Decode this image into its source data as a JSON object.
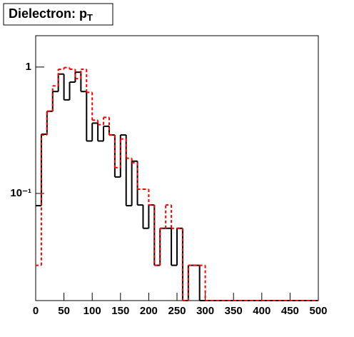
{
  "chart_data": {
    "type": "histogram",
    "title": {
      "text": "Dielectron: p",
      "subscript": "T"
    },
    "bins": [
      0,
      10,
      20,
      30,
      40,
      50,
      60,
      70,
      80,
      90,
      100,
      110,
      120,
      130,
      140,
      150,
      160,
      170,
      180,
      190,
      200,
      210,
      220,
      230,
      240,
      250,
      260,
      270,
      280,
      290,
      300,
      310,
      320,
      330,
      340,
      350,
      360,
      370,
      380,
      390,
      400,
      410,
      420,
      430,
      440,
      450,
      460,
      470,
      480,
      490,
      500
    ],
    "series": [
      {
        "color": "#000000",
        "dash": false,
        "values": [
          0.08,
          0.294,
          0.447,
          0.64,
          0.88,
          0.55,
          0.76,
          0.91,
          0.64,
          0.26,
          0.36,
          0.26,
          0.34,
          0.29,
          0.135,
          0.29,
          0.08,
          0.18,
          0.081,
          0.053,
          0.081,
          0.027,
          0.053,
          0.053,
          0.027,
          0.053,
          0,
          0.027,
          0.027,
          0,
          0,
          0,
          0,
          0,
          0,
          0,
          0,
          0,
          0,
          0,
          0,
          0,
          0,
          0,
          0,
          0,
          0,
          0,
          0,
          0
        ]
      },
      {
        "color": "#ff0000",
        "dash": true,
        "values": [
          0.027,
          0.29,
          0.447,
          0.71,
          0.96,
          0.99,
          0.96,
          0.81,
          0.96,
          0.63,
          0.38,
          0.35,
          0.4,
          0.29,
          0.16,
          0.27,
          0.19,
          0.175,
          0.108,
          0.108,
          0.081,
          0.027,
          0.053,
          0.081,
          0.053,
          0.053,
          0,
          0.027,
          0.027,
          0.027,
          0,
          0,
          0,
          0,
          0,
          0,
          0,
          0,
          0,
          0,
          0,
          0,
          0,
          0,
          0,
          0,
          0,
          0,
          0,
          0
        ]
      }
    ],
    "xlim": [
      0,
      500
    ],
    "xticks": [
      0,
      50,
      100,
      150,
      200,
      250,
      300,
      350,
      400,
      450,
      500
    ],
    "ylim": [
      0.0142,
      1.77
    ],
    "log_y": true,
    "yticks": [
      1,
      {
        "value": 0.1,
        "label": "10⁻¹"
      }
    ]
  }
}
